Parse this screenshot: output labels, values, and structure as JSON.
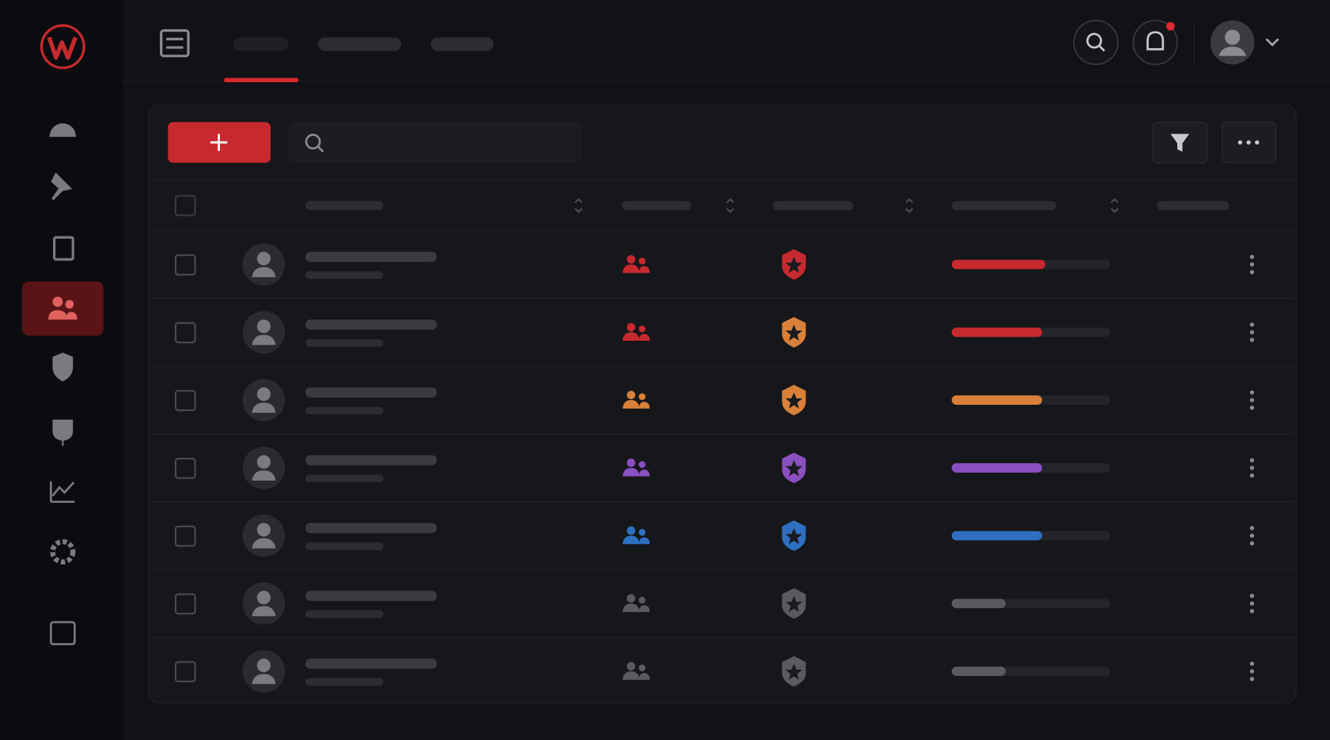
{
  "table": {
    "rows": [
      {
        "color": "#c62a2f",
        "badge_color": "#c62a2f",
        "progress": 59
      },
      {
        "color": "#c62a2f",
        "badge_color": "#d9803a",
        "progress": 57
      },
      {
        "color": "#d9803a",
        "badge_color": "#d9803a",
        "progress": 57
      },
      {
        "color": "#8a4fc0",
        "badge_color": "#8a4fc0",
        "progress": 57
      },
      {
        "color": "#2e6fc0",
        "badge_color": "#2e6fc0",
        "progress": 57
      },
      {
        "color": "#5a5b5e",
        "badge_color": "#5a5b5e",
        "progress": 34
      },
      {
        "color": "#5a5b5e",
        "badge_color": "#5a5b5e",
        "progress": 34
      }
    ]
  }
}
